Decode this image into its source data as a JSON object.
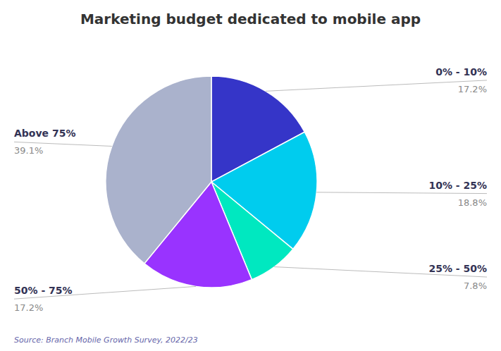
{
  "chart_data": {
    "type": "pie",
    "title": "Marketing budget dedicated to mobile app",
    "categories": [
      "0% - 10%",
      "10% - 25%",
      "25% - 50%",
      "50% - 75%",
      "Above 75%"
    ],
    "values": [
      17.2,
      18.8,
      7.8,
      17.2,
      39.1
    ],
    "value_labels": [
      "17.2%",
      "18.8%",
      "7.8%",
      "17.2%",
      "39.1%"
    ],
    "colors": [
      "#3535c8",
      "#00ccee",
      "#00e8c0",
      "#9933ff",
      "#aab2cc"
    ],
    "data_labels": true,
    "annotations": [
      "Source: Branch Mobile Growth Survey, 2022/23"
    ]
  }
}
